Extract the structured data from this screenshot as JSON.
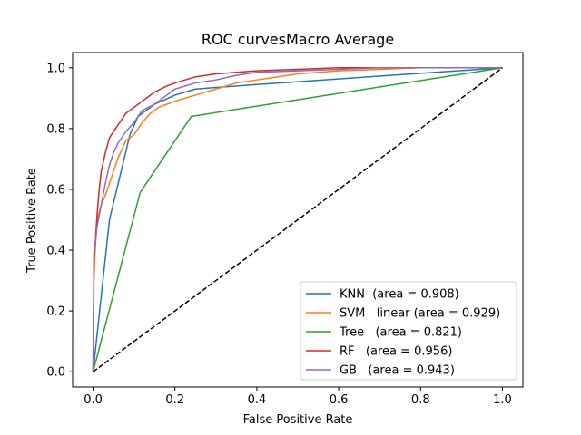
{
  "chart_data": {
    "type": "line",
    "title": "ROC curvesMacro Average",
    "xlabel": "False Positive Rate",
    "ylabel": "True Positive Rate",
    "xlim": [
      -0.05,
      1.05
    ],
    "ylim": [
      -0.05,
      1.05
    ],
    "xticks": [
      0.0,
      0.2,
      0.4,
      0.6,
      0.8,
      1.0
    ],
    "yticks": [
      0.0,
      0.2,
      0.4,
      0.6,
      0.8,
      1.0
    ],
    "xtick_labels": [
      "0.0",
      "0.2",
      "0.4",
      "0.6",
      "0.8",
      "1.0"
    ],
    "ytick_labels": [
      "0.0",
      "0.2",
      "0.4",
      "0.6",
      "0.8",
      "1.0"
    ],
    "grid": false,
    "legend_position": "lower-right",
    "series": [
      {
        "name": "KNN  (area = 0.908)",
        "color": "#1f77b4",
        "x": [
          0.0,
          0.04,
          0.09,
          0.11,
          0.15,
          0.2,
          0.25,
          0.4,
          1.0
        ],
        "y": [
          0.0,
          0.5,
          0.78,
          0.84,
          0.88,
          0.91,
          0.93,
          0.945,
          1.0
        ]
      },
      {
        "name": "SVM   linear (area = 0.929)",
        "color": "#ff7f0e",
        "x": [
          0.0,
          0.002,
          0.005,
          0.01,
          0.02,
          0.03,
          0.04,
          0.05,
          0.06,
          0.07,
          0.08,
          0.09,
          0.1,
          0.12,
          0.14,
          0.16,
          0.18,
          0.2,
          0.25,
          0.3,
          0.35,
          0.4,
          0.45,
          0.5,
          0.6,
          0.7,
          0.8,
          1.0
        ],
        "y": [
          0.0,
          0.3,
          0.4,
          0.5,
          0.55,
          0.58,
          0.62,
          0.66,
          0.7,
          0.73,
          0.76,
          0.77,
          0.78,
          0.82,
          0.85,
          0.87,
          0.88,
          0.89,
          0.91,
          0.93,
          0.95,
          0.96,
          0.97,
          0.98,
          0.99,
          0.995,
          1.0,
          1.0
        ]
      },
      {
        "name": "Tree   (area = 0.821)",
        "color": "#2ca02c",
        "x": [
          0.0,
          0.115,
          0.24,
          1.0
        ],
        "y": [
          0.0,
          0.59,
          0.84,
          1.0
        ]
      },
      {
        "name": "RF   (area = 0.956)",
        "color": "#d62728",
        "x": [
          0.0,
          0.002,
          0.005,
          0.01,
          0.015,
          0.02,
          0.03,
          0.04,
          0.05,
          0.06,
          0.07,
          0.08,
          0.1,
          0.12,
          0.15,
          0.18,
          0.2,
          0.25,
          0.3,
          0.35,
          0.4,
          0.5,
          0.6,
          0.7,
          0.8,
          1.0
        ],
        "y": [
          0.0,
          0.36,
          0.42,
          0.52,
          0.6,
          0.66,
          0.72,
          0.77,
          0.79,
          0.81,
          0.83,
          0.85,
          0.87,
          0.89,
          0.92,
          0.94,
          0.95,
          0.97,
          0.98,
          0.985,
          0.99,
          0.995,
          1.0,
          1.0,
          1.0,
          1.0
        ]
      },
      {
        "name": "GB   (area = 0.943)",
        "color": "#9467bd",
        "x": [
          0.0,
          0.002,
          0.005,
          0.01,
          0.02,
          0.03,
          0.04,
          0.05,
          0.06,
          0.08,
          0.1,
          0.12,
          0.15,
          0.18,
          0.2,
          0.25,
          0.3,
          0.35,
          0.4,
          0.5,
          0.6,
          0.7,
          0.8,
          1.0
        ],
        "y": [
          0.0,
          0.39,
          0.42,
          0.48,
          0.55,
          0.62,
          0.68,
          0.72,
          0.75,
          0.79,
          0.82,
          0.86,
          0.88,
          0.91,
          0.93,
          0.95,
          0.96,
          0.975,
          0.985,
          0.99,
          0.995,
          1.0,
          1.0,
          1.0
        ]
      }
    ],
    "reference_line": {
      "style": "dashed",
      "color": "#000000",
      "x": [
        0.0,
        1.0
      ],
      "y": [
        0.0,
        1.0
      ]
    }
  }
}
